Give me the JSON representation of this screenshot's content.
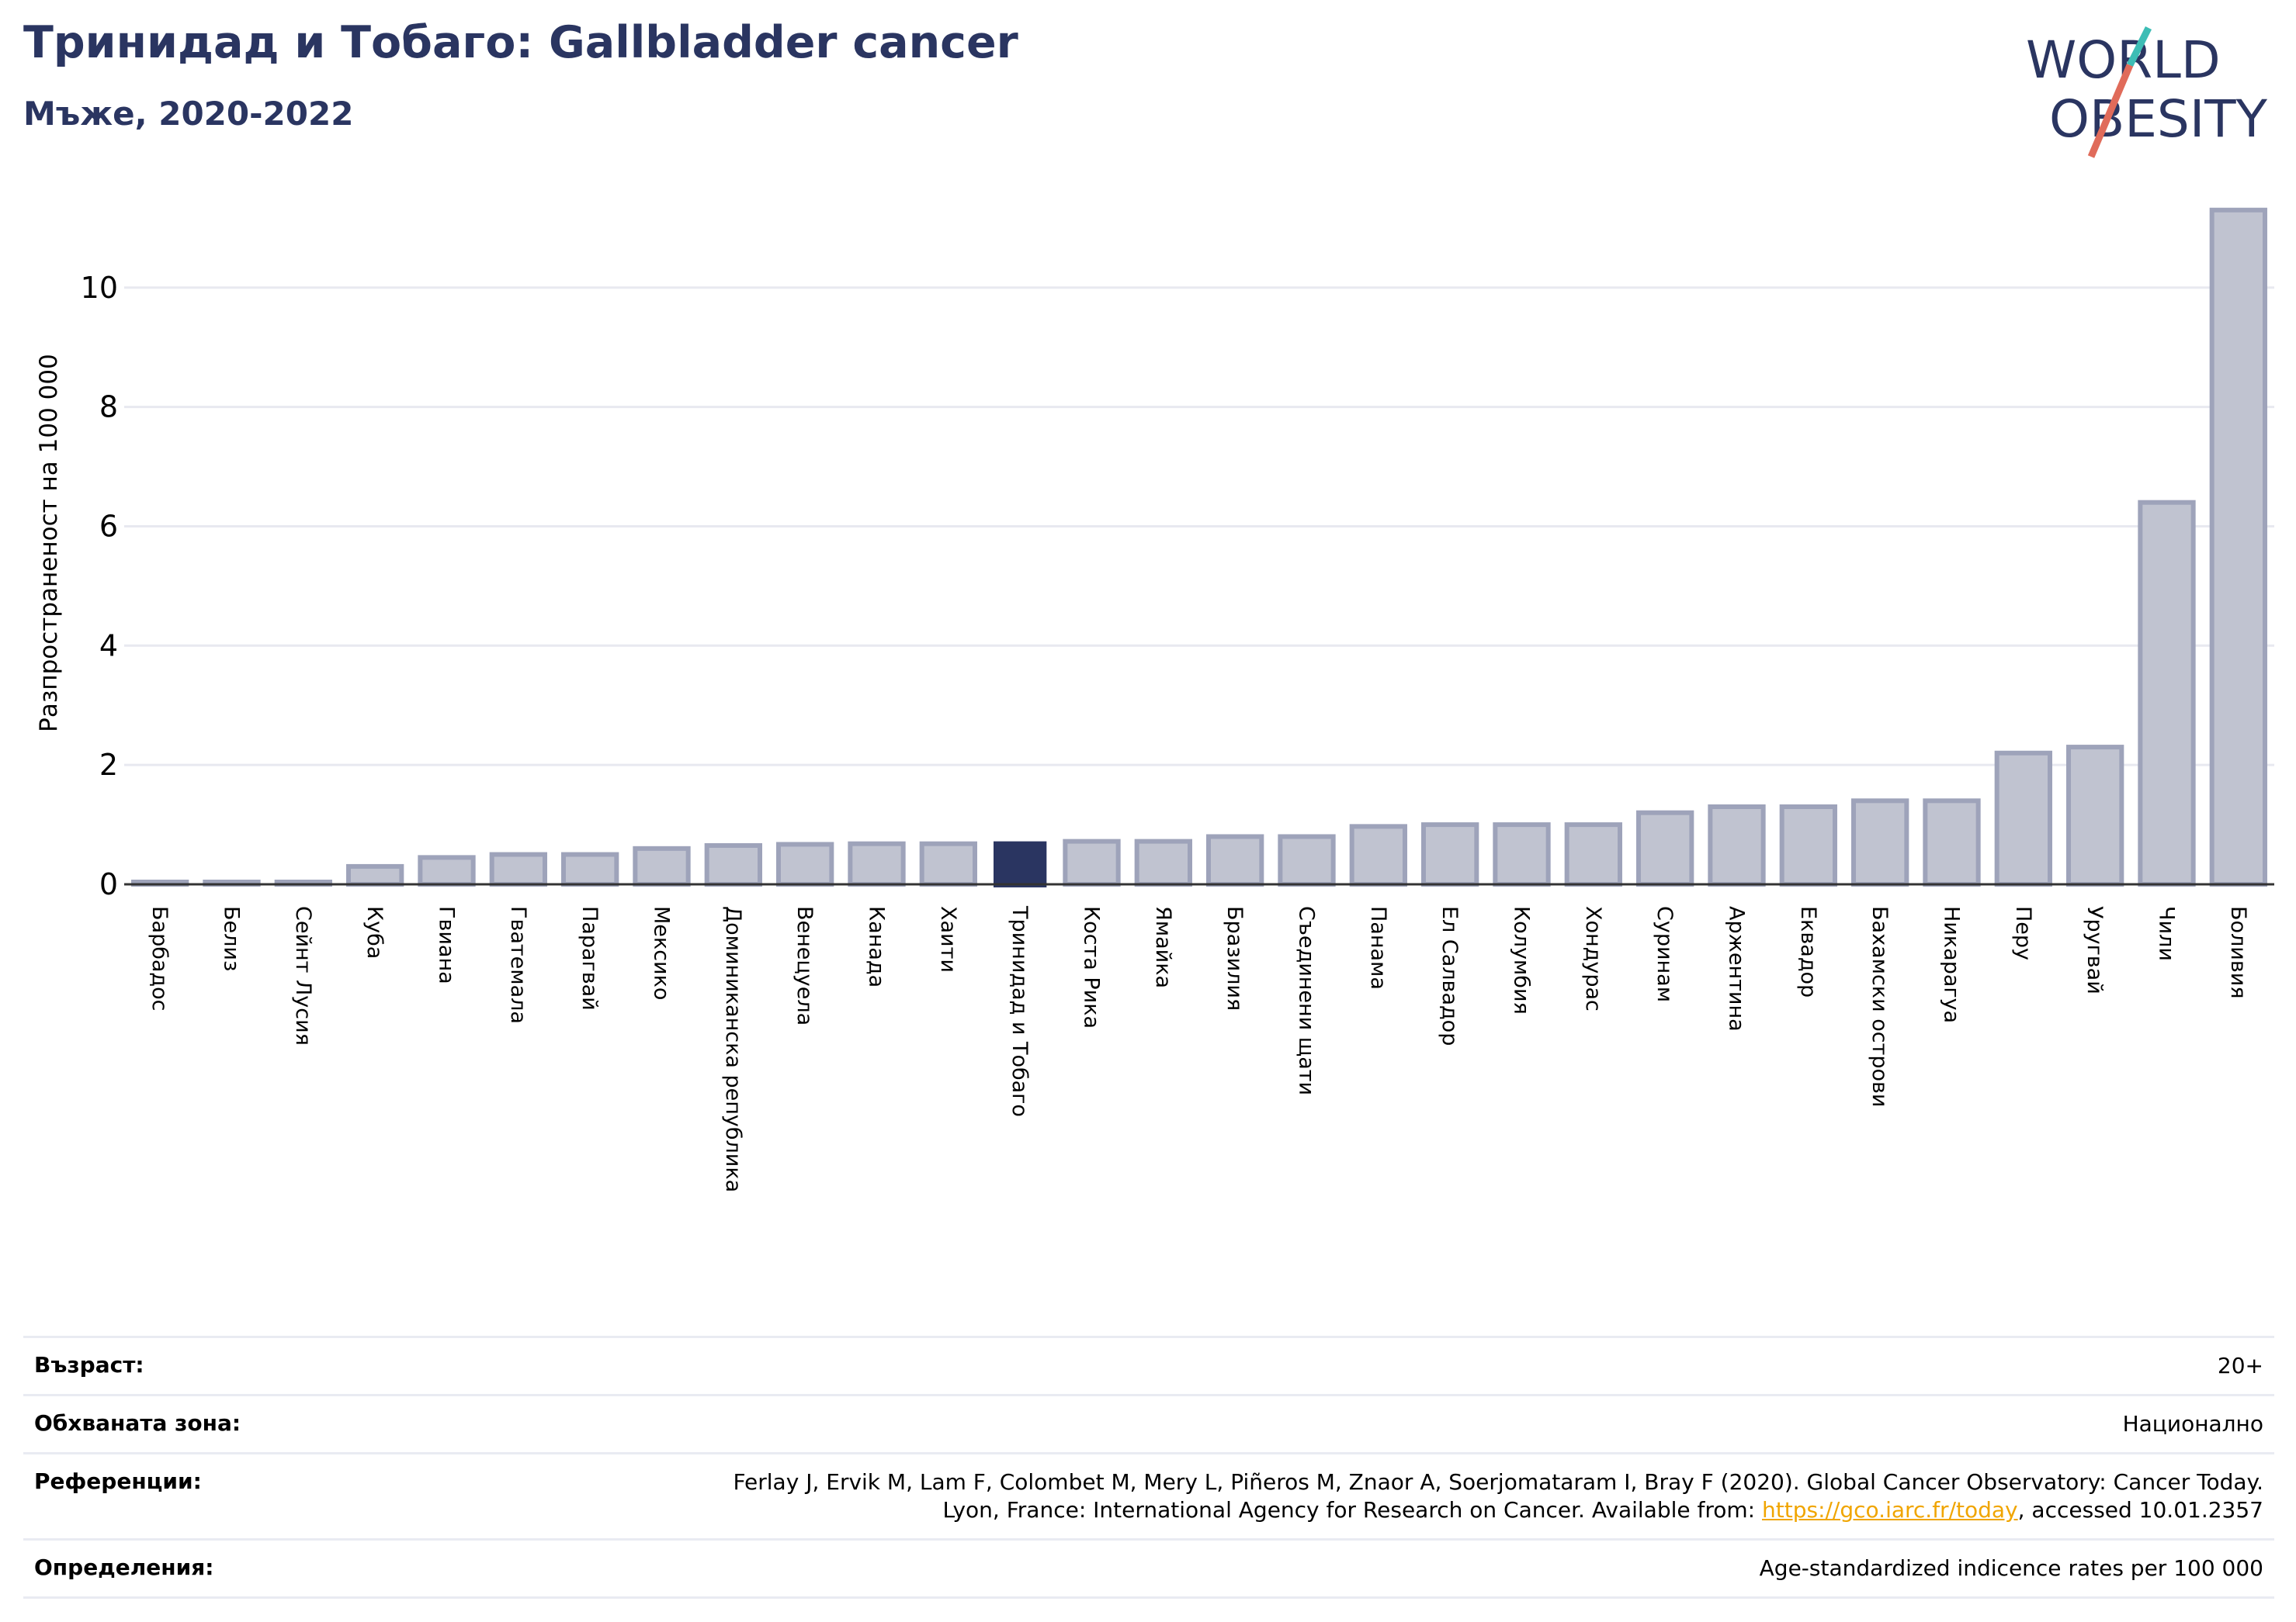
{
  "header": {
    "title": "Тринидад и Тобаго: Gallbladder cancer",
    "subtitle": "Мъже, 2020-2022"
  },
  "logo": {
    "line1": "WORLD",
    "line2": "OBESITY"
  },
  "colors": {
    "highlight": "#2a3561",
    "bar_fill": "#c0c3d0",
    "bar_edge": "#9ea3ba",
    "grid": "#e8e9f0",
    "logo_slash_top": "#3dbdb5",
    "logo_slash_bottom": "#e06b5a"
  },
  "chart_data": {
    "type": "bar",
    "ylabel": "Разпространеност  на 100 000",
    "ylim": [
      0,
      11.7
    ],
    "yticks": [
      0,
      2,
      4,
      6,
      8,
      10
    ],
    "grid": true,
    "highlight": "Тринидад и Тобаго",
    "categories": [
      "Барбадос",
      "Белиз",
      "Сейнт Лусия",
      "Куба",
      "Гвиана",
      "Гватемала",
      "Парагвай",
      "Мексико",
      "Доминиканска република",
      "Венецуела",
      "Канада",
      "Хаити",
      "Тринидад и Тобаго",
      "Коста Рика",
      "Ямайка",
      "Бразилия",
      "Съединени щати",
      "Панама",
      "Ел Салвадор",
      "Колумбия",
      "Хондурас",
      "Суринам",
      "Аржентина",
      "Еквадор",
      "Бахамски острови",
      "Никарагуа",
      "Перу",
      "Уругвай",
      "Чили",
      "Боливия"
    ],
    "values": [
      0.02,
      0.02,
      0.02,
      0.3,
      0.45,
      0.5,
      0.5,
      0.6,
      0.65,
      0.67,
      0.68,
      0.68,
      0.72,
      0.72,
      0.72,
      0.8,
      0.8,
      0.97,
      1.0,
      1.0,
      1.0,
      1.2,
      1.3,
      1.3,
      1.4,
      1.4,
      2.2,
      2.3,
      6.4,
      11.3
    ]
  },
  "footer": {
    "age_label": "Възраст:",
    "age_value": "20+",
    "coverage_label": "Обхваната зона:",
    "coverage_value": "Национално",
    "references_label": "Референции:",
    "references_line1": "Ferlay J, Ervik M, Lam F, Colombet M, Mery L, Piñeros M, Znaor A, Soerjomataram I, Bray F (2020). Global Cancer Observatory: Cancer Today.",
    "references_line2_prefix": "Lyon, France: International Agency for Research on Cancer. Available from: ",
    "references_link": "https://gco.iarc.fr/today",
    "references_line2_suffix": ", accessed 10.01.2357",
    "definitions_label": "Определения:",
    "definitions_value": "Age-standardized indicence rates per 100 000"
  }
}
